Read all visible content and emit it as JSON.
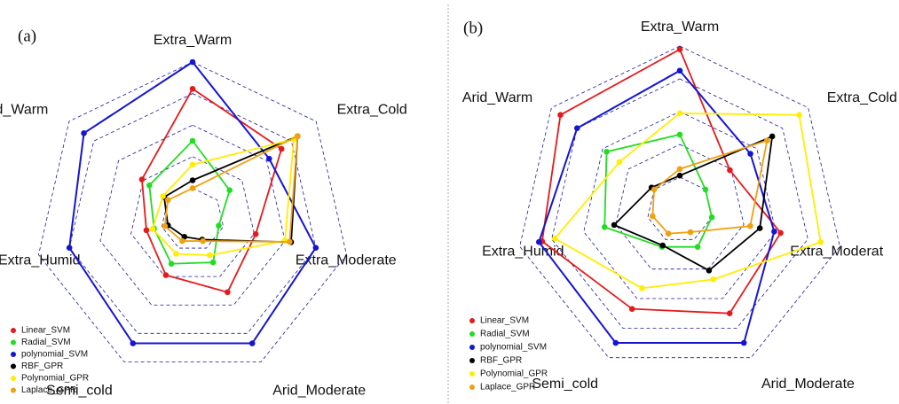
{
  "chart_data": [
    {
      "type": "radar",
      "panel_label": "(a)",
      "categories": [
        "Extra_Warm",
        "Extra_Cold",
        "Extra_Moderate",
        "Arid_Moderate",
        "Semi_cold",
        "Extra_Humid",
        "Arid_Warm"
      ],
      "ylim": [
        0,
        1
      ],
      "yticks": [
        0.2,
        0.4,
        0.6,
        0.8,
        1
      ],
      "series": [
        {
          "name": "Linear_SVM",
          "color": "#e41a1c",
          "values": [
            0.83,
            0.72,
            0.41,
            0.51,
            0.39,
            0.3,
            0.41
          ]
        },
        {
          "name": "Radial_SVM",
          "color": "#22dd22",
          "values": [
            0.5,
            0.3,
            0.17,
            0.3,
            0.31,
            0.25,
            0.35
          ]
        },
        {
          "name": "polynomial_SVM",
          "color": "#1515d0",
          "values": [
            1.0,
            0.62,
            0.8,
            0.87,
            0.87,
            0.8,
            0.88
          ]
        },
        {
          "name": "RBF_GPR",
          "color": "#000000",
          "values": [
            0.25,
            0.85,
            0.64,
            0.14,
            0.12,
            0.16,
            0.23
          ]
        },
        {
          "name": "Polynomial_GPR",
          "color": "#ffee00",
          "values": [
            0.35,
            0.82,
            0.6,
            0.25,
            0.24,
            0.26,
            0.24
          ]
        },
        {
          "name": "Laplace_GPR",
          "color": "#f0a010",
          "values": [
            0.2,
            0.85,
            0.63,
            0.15,
            0.15,
            0.18,
            0.2
          ]
        }
      ]
    },
    {
      "type": "radar",
      "panel_label": "(b)",
      "categories": [
        "Extra_Warm",
        "Extra_Cold",
        "Extra_Moderat",
        "Arid_Moderate",
        "Semi_cold",
        "Extra_Humid",
        "Arid_Warm"
      ],
      "ylim": [
        0,
        1
      ],
      "yticks": [
        0.2,
        0.4,
        0.6,
        0.8,
        1
      ],
      "series": [
        {
          "name": "Linear_SVM",
          "color": "#e41a1c",
          "values": [
            0.98,
            0.39,
            0.63,
            0.7,
            0.67,
            0.86,
            0.93
          ]
        },
        {
          "name": "Radial_SVM",
          "color": "#22dd22",
          "values": [
            0.46,
            0.2,
            0.2,
            0.25,
            0.25,
            0.47,
            0.57
          ]
        },
        {
          "name": "polynomial_SVM",
          "color": "#1515d0",
          "values": [
            0.85,
            0.55,
            0.59,
            0.9,
            0.9,
            0.88,
            0.8
          ]
        },
        {
          "name": "RBF_GPR",
          "color": "#000000",
          "values": [
            0.21,
            0.72,
            0.5,
            0.41,
            0.24,
            0.41,
            0.22
          ]
        },
        {
          "name": "Polynomial_GPR",
          "color": "#ffee00",
          "values": [
            0.59,
            0.93,
            0.88,
            0.47,
            0.53,
            0.78,
            0.47
          ]
        },
        {
          "name": "Laplace_GPR",
          "color": "#f0a010",
          "values": [
            0.25,
            0.68,
            0.44,
            0.15,
            0.16,
            0.17,
            0.2
          ]
        }
      ]
    }
  ]
}
